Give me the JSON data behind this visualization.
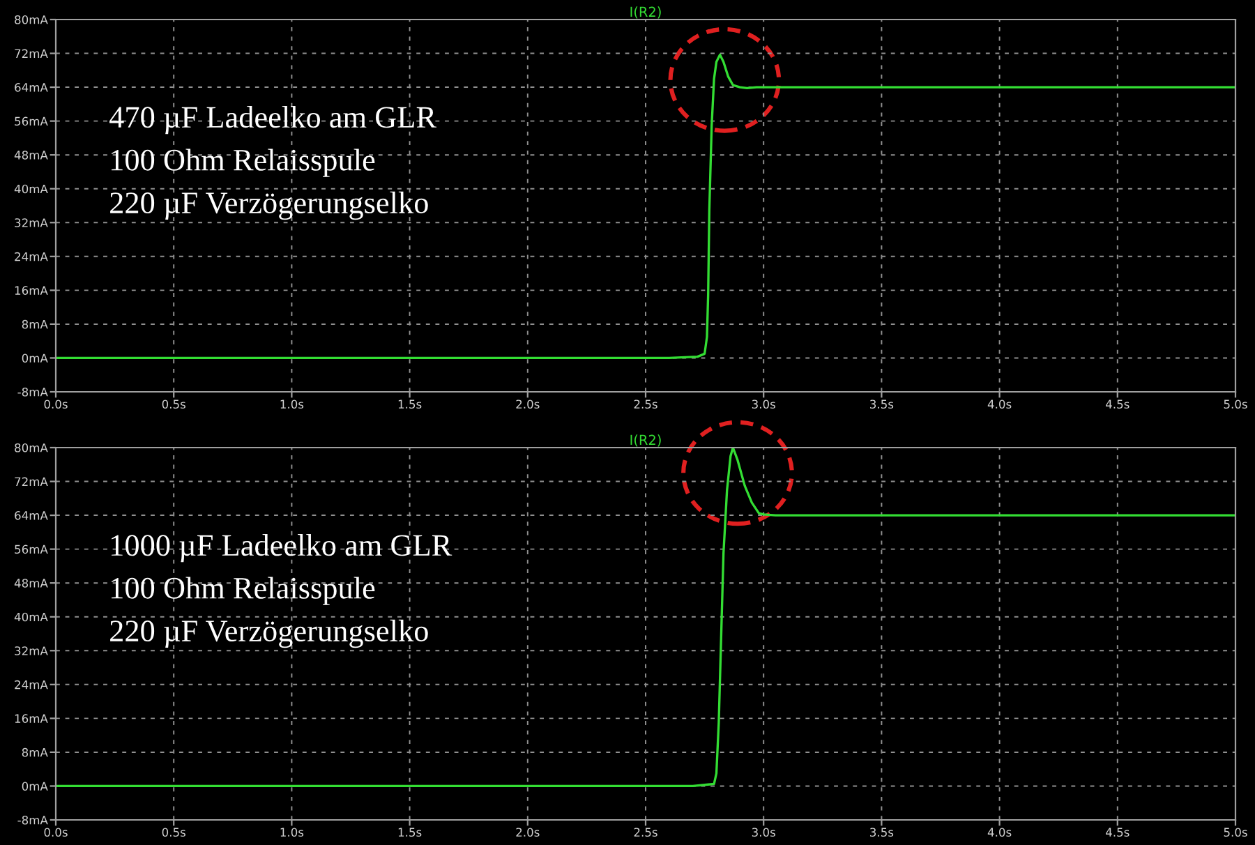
{
  "chart_data": [
    {
      "type": "line",
      "title": "I(R2)",
      "annotations": [
        "470 µF Ladeelko am GLR",
        "100 Ohm Relaisspule",
        "220 µF Verzögerungselko"
      ],
      "series": [
        {
          "color": "#33dd33",
          "x": [
            0,
            2.6,
            2.72,
            2.75,
            2.76,
            2.765,
            2.77,
            2.78,
            2.79,
            2.8,
            2.815,
            2.83,
            2.85,
            2.87,
            2.9,
            2.93,
            2.97,
            5.0
          ],
          "values": [
            0,
            0,
            0.3,
            1,
            5,
            15,
            35,
            55,
            66,
            70,
            71.7,
            70,
            66.5,
            64.5,
            64,
            63.8,
            64,
            64
          ]
        }
      ],
      "xlim": [
        0,
        5
      ],
      "xticks": [
        {
          "value": 0,
          "label": "0.0s"
        },
        {
          "value": 0.5,
          "label": "0.5s"
        },
        {
          "value": 1,
          "label": "1.0s"
        },
        {
          "value": 1.5,
          "label": "1.5s"
        },
        {
          "value": 2,
          "label": "2.0s"
        },
        {
          "value": 2.5,
          "label": "2.5s"
        },
        {
          "value": 3,
          "label": "3.0s"
        },
        {
          "value": 3.5,
          "label": "3.5s"
        },
        {
          "value": 4,
          "label": "4.0s"
        },
        {
          "value": 4.5,
          "label": "4.5s"
        },
        {
          "value": 5,
          "label": "5.0s"
        }
      ],
      "ylim": [
        -8,
        80
      ],
      "yticks": [
        {
          "value": -8,
          "label": "-8mA"
        },
        {
          "value": 0,
          "label": "0mA"
        },
        {
          "value": 8,
          "label": "8mA"
        },
        {
          "value": 16,
          "label": "16mA"
        },
        {
          "value": 24,
          "label": "24mA"
        },
        {
          "value": 32,
          "label": "32mA"
        },
        {
          "value": 40,
          "label": "40mA"
        },
        {
          "value": 48,
          "label": "48mA"
        },
        {
          "value": 56,
          "label": "56mA"
        },
        {
          "value": 64,
          "label": "64mA"
        },
        {
          "value": 72,
          "label": "72mA"
        },
        {
          "value": 80,
          "label": "80mA"
        }
      ],
      "grid": true,
      "line_style": "solid"
    },
    {
      "type": "line",
      "title": "I(R2)",
      "annotations": [
        "1000 µF Ladeelko am GLR",
        "100 Ohm Relaisspule",
        "220 µF Verzögerungselko"
      ],
      "series": [
        {
          "color": "#33dd33",
          "x": [
            0,
            2.7,
            2.79,
            2.8,
            2.81,
            2.82,
            2.83,
            2.845,
            2.86,
            2.87,
            2.89,
            2.92,
            2.95,
            2.98,
            3.0,
            3.05,
            5.0
          ],
          "values": [
            0,
            0,
            0.5,
            3,
            15,
            35,
            55,
            70,
            78,
            80,
            77,
            71,
            67,
            64.5,
            64.2,
            64,
            64
          ]
        }
      ],
      "xlim": [
        0,
        5
      ],
      "xticks": [
        {
          "value": 0,
          "label": "0.0s"
        },
        {
          "value": 0.5,
          "label": "0.5s"
        },
        {
          "value": 1,
          "label": "1.0s"
        },
        {
          "value": 1.5,
          "label": "1.5s"
        },
        {
          "value": 2,
          "label": "2.0s"
        },
        {
          "value": 2.5,
          "label": "2.5s"
        },
        {
          "value": 3,
          "label": "3.0s"
        },
        {
          "value": 3.5,
          "label": "3.5s"
        },
        {
          "value": 4,
          "label": "4.0s"
        },
        {
          "value": 4.5,
          "label": "4.5s"
        },
        {
          "value": 5,
          "label": "5.0s"
        }
      ],
      "ylim": [
        -8,
        80
      ],
      "yticks": [
        {
          "value": -8,
          "label": "-8mA"
        },
        {
          "value": 0,
          "label": "0mA"
        },
        {
          "value": 8,
          "label": "8mA"
        },
        {
          "value": 16,
          "label": "16mA"
        },
        {
          "value": 24,
          "label": "24mA"
        },
        {
          "value": 32,
          "label": "32mA"
        },
        {
          "value": 40,
          "label": "40mA"
        },
        {
          "value": 48,
          "label": "48mA"
        },
        {
          "value": 56,
          "label": "56mA"
        },
        {
          "value": 64,
          "label": "64mA"
        },
        {
          "value": 72,
          "label": "72mA"
        },
        {
          "value": 80,
          "label": "80mA"
        }
      ],
      "grid": true,
      "line_style": "solid"
    }
  ]
}
